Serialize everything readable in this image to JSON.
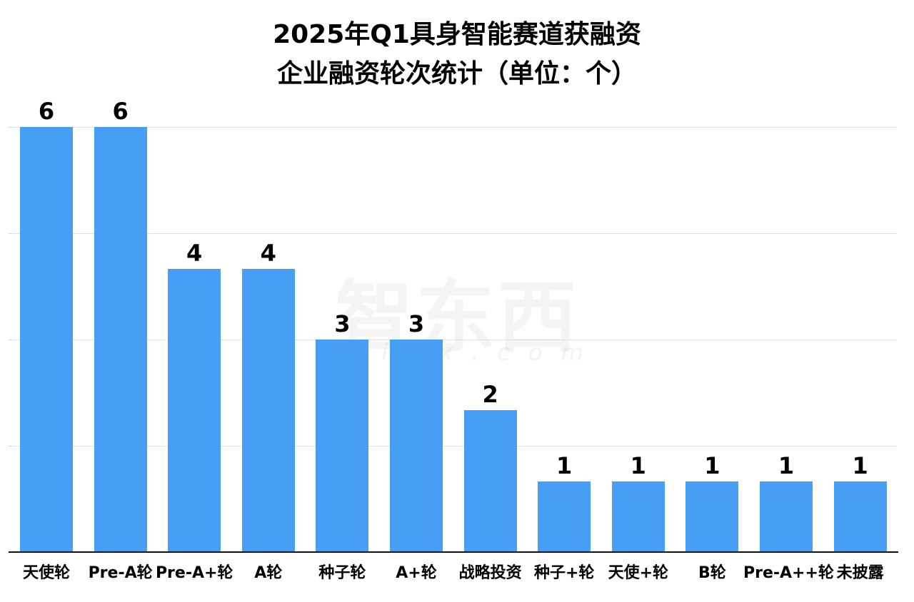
{
  "chart_data": {
    "type": "bar",
    "title": "2025年Q1具身智能赛道获融资企业融资轮次统计（单位：个）",
    "title_lines": [
      "2025年Q1具身智能赛道获融资",
      "企业融资轮次统计（单位：个）"
    ],
    "categories": [
      "天使轮",
      "Pre-A轮",
      "Pre-A+轮",
      "A轮",
      "种子轮",
      "A+轮",
      "战略投资",
      "种子+轮",
      "天使+轮",
      "B轮",
      "Pre-A++轮",
      "未披露"
    ],
    "values": [
      6,
      6,
      4,
      4,
      3,
      3,
      2,
      1,
      1,
      1,
      1,
      1
    ],
    "xlabel": "",
    "ylabel": "",
    "ylim": [
      0,
      6
    ],
    "grid": true,
    "gridlines_at": [
      1.5,
      3,
      4.5,
      6
    ],
    "bar_color": "#479ef5",
    "data_labels": true,
    "legend": null
  },
  "watermark": {
    "text_cn": "智东西",
    "text_en": "zhidx.com"
  }
}
